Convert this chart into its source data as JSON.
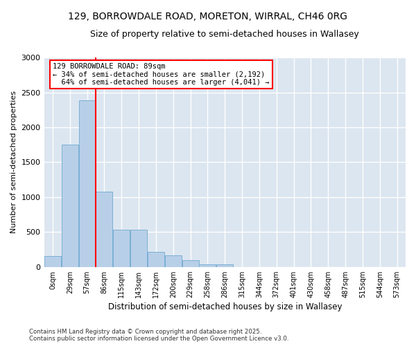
{
  "title_line1": "129, BORROWDALE ROAD, MORETON, WIRRAL, CH46 0RG",
  "title_line2": "Size of property relative to semi-detached houses in Wallasey",
  "xlabel": "Distribution of semi-detached houses by size in Wallasey",
  "ylabel": "Number of semi-detached properties",
  "bar_color": "#b8cfe8",
  "bar_edge_color": "#7aafd4",
  "bg_color": "#dce6f0",
  "grid_color": "#ffffff",
  "categories": [
    "0sqm",
    "29sqm",
    "57sqm",
    "86sqm",
    "115sqm",
    "143sqm",
    "172sqm",
    "200sqm",
    "229sqm",
    "258sqm",
    "286sqm",
    "315sqm",
    "344sqm",
    "372sqm",
    "401sqm",
    "430sqm",
    "458sqm",
    "487sqm",
    "515sqm",
    "544sqm",
    "573sqm"
  ],
  "values": [
    155,
    1750,
    2390,
    1080,
    530,
    530,
    215,
    165,
    100,
    35,
    35,
    0,
    0,
    0,
    0,
    0,
    0,
    0,
    0,
    0,
    0
  ],
  "property_label": "129 BORROWDALE ROAD: 89sqm",
  "smaller_pct": 34,
  "smaller_count": 2192,
  "larger_pct": 64,
  "larger_count": 4041,
  "vline_x_index": 2.5,
  "ylim": [
    0,
    3000
  ],
  "yticks": [
    0,
    500,
    1000,
    1500,
    2000,
    2500,
    3000
  ],
  "footer_line1": "Contains HM Land Registry data © Crown copyright and database right 2025.",
  "footer_line2": "Contains public sector information licensed under the Open Government Licence v3.0."
}
